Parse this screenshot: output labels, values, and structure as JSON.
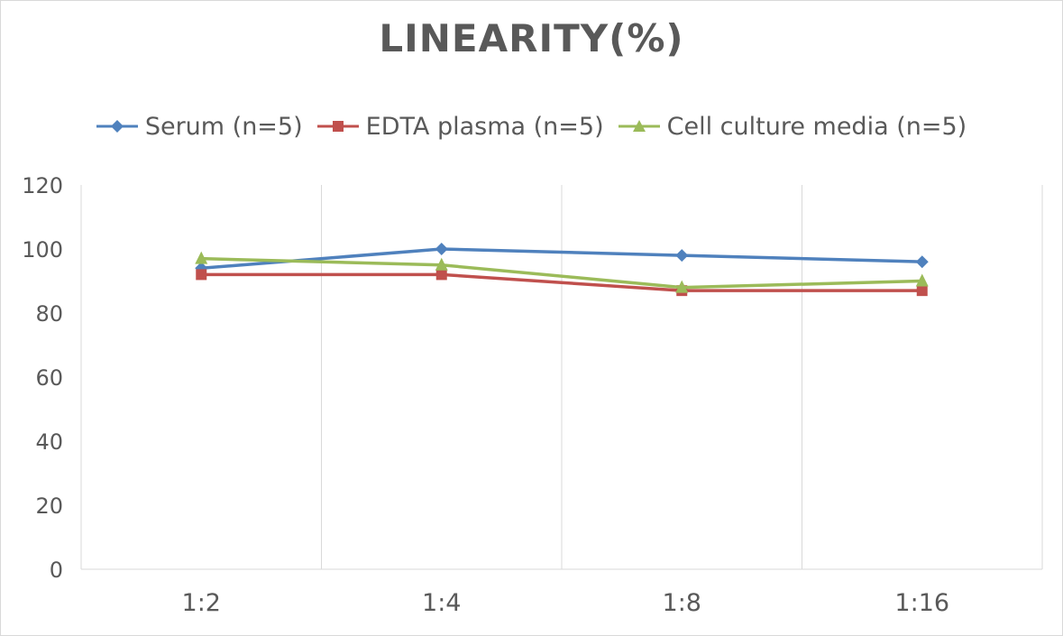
{
  "chart_data": {
    "type": "line",
    "title": "LINEARITY(%)",
    "categories": [
      "1:2",
      "1:4",
      "1:8",
      "1:16"
    ],
    "series": [
      {
        "name": "Serum (n=5)",
        "values": [
          94,
          100,
          98,
          96
        ],
        "color": "#4f81bd",
        "marker": "diamond"
      },
      {
        "name": "EDTA plasma (n=5)",
        "values": [
          92,
          92,
          87,
          87
        ],
        "color": "#c0504d",
        "marker": "square"
      },
      {
        "name": "Cell culture media (n=5)",
        "values": [
          97,
          95,
          88,
          90
        ],
        "color": "#9bbb59",
        "marker": "triangle"
      }
    ],
    "ylim": [
      0,
      120
    ],
    "yticks": [
      0,
      20,
      40,
      60,
      80,
      100,
      120
    ],
    "xlabel": "",
    "ylabel": "",
    "grid": "vertical",
    "legend_position": "top"
  }
}
